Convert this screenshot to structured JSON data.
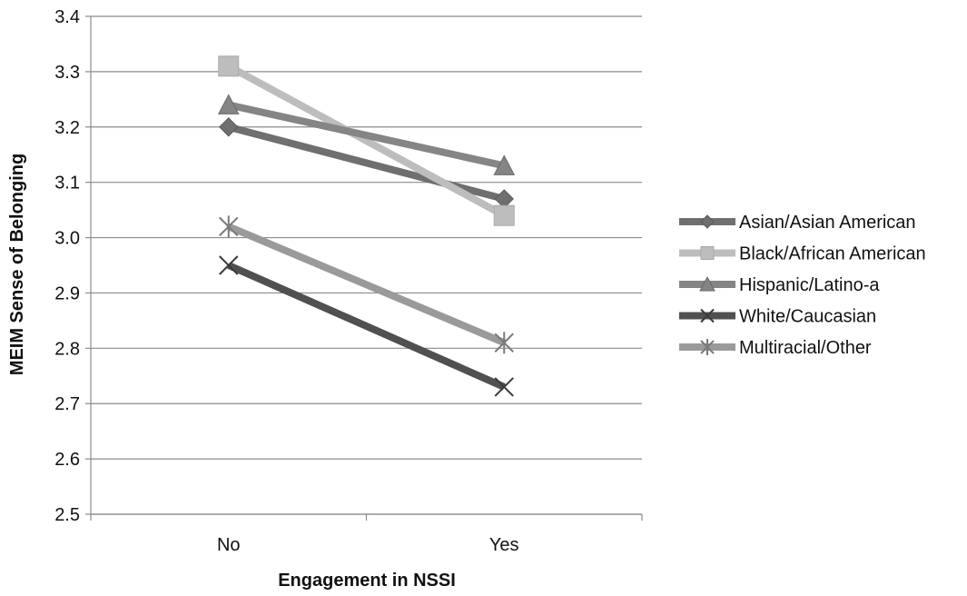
{
  "chart_data": {
    "type": "line",
    "title": "",
    "xlabel": "Engagement in NSSI",
    "ylabel": "MEIM Sense of Belonging",
    "categories": [
      "No",
      "Yes"
    ],
    "ylim": [
      2.5,
      3.4
    ],
    "yticks": [
      2.5,
      2.6,
      2.7,
      2.8,
      2.9,
      3.0,
      3.1,
      3.2,
      3.3,
      3.4
    ],
    "ytick_labels": [
      "2.5",
      "2.6",
      "2.7",
      "2.8",
      "2.9",
      "3.0",
      "3.1",
      "3.2",
      "3.3",
      "3.4"
    ],
    "grid": "horizontal",
    "legend_position": "right",
    "series": [
      {
        "name": "Asian/Asian American",
        "values": [
          3.2,
          3.07
        ],
        "marker": "diamond",
        "color": "#6f6f6f"
      },
      {
        "name": "Black/African American",
        "values": [
          3.31,
          3.04
        ],
        "marker": "square",
        "color": "#bdbdbd"
      },
      {
        "name": "Hispanic/Latino-a",
        "values": [
          3.24,
          3.13
        ],
        "marker": "triangle",
        "color": "#858585"
      },
      {
        "name": "White/Caucasian",
        "values": [
          2.95,
          2.73
        ],
        "marker": "x",
        "color": "#505050"
      },
      {
        "name": "Multiracial/Other",
        "values": [
          3.02,
          2.81
        ],
        "marker": "star",
        "color": "#9a9a9a"
      }
    ]
  }
}
